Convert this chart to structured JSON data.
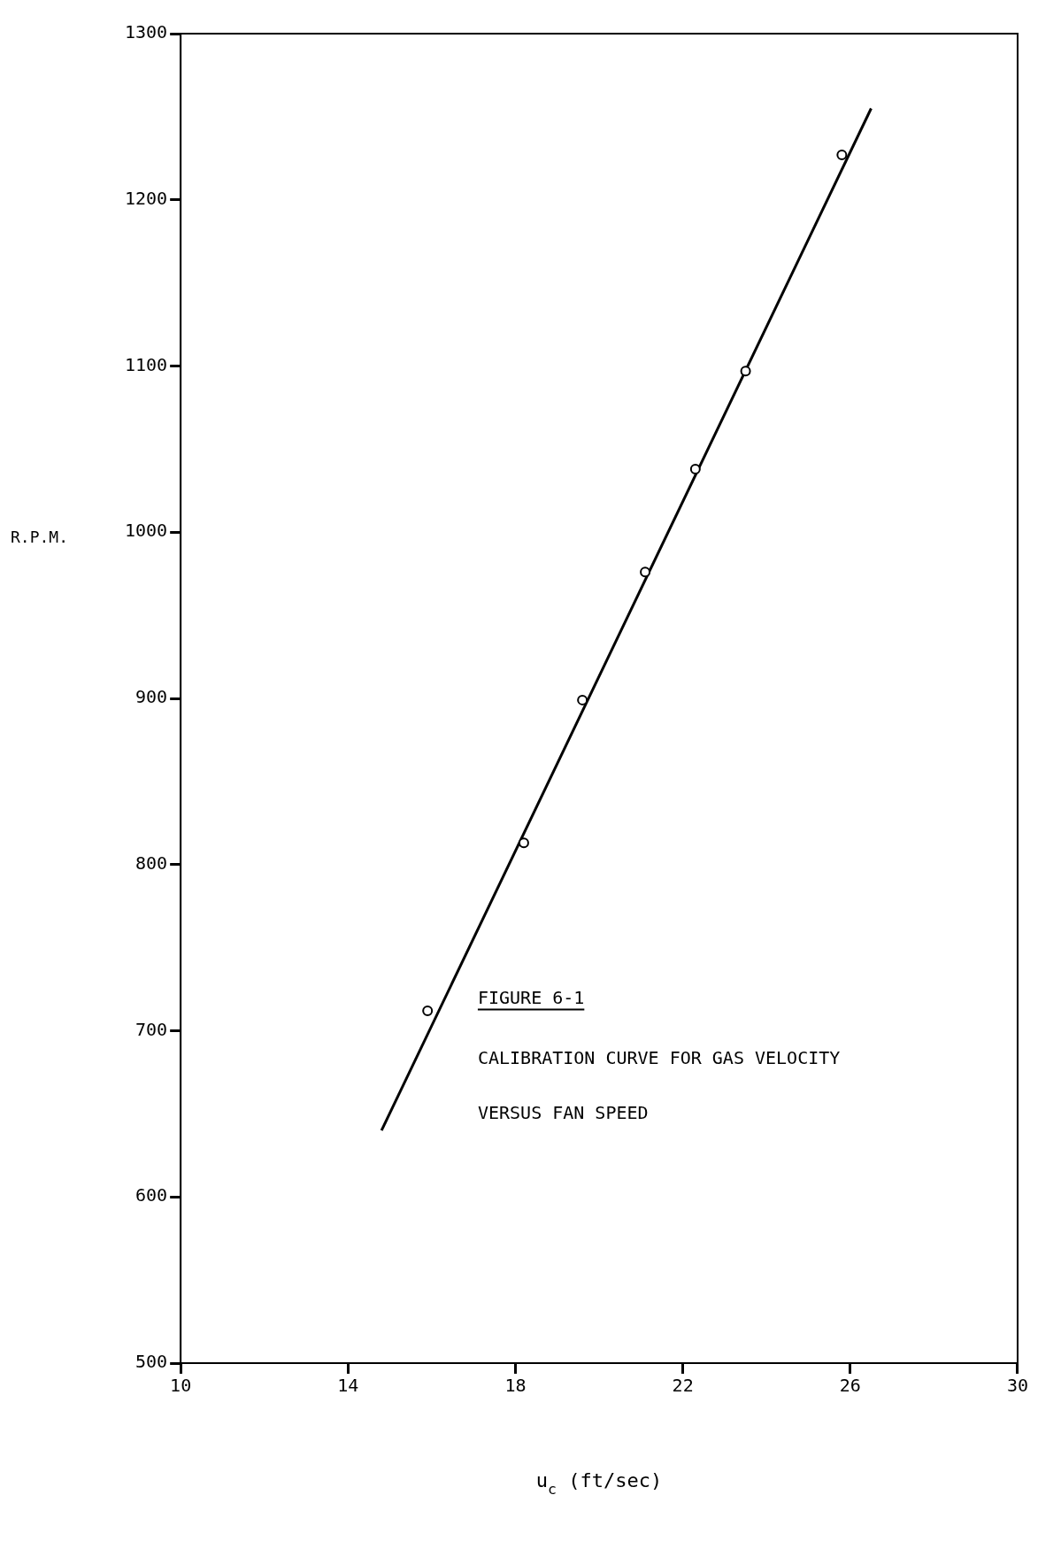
{
  "chart_data": {
    "type": "scatter",
    "xlabel": "u$_{c}$ (ft/sec)",
    "ylabel": "R.P.M.",
    "annotations": [
      "FIGURE 6-1",
      "CALIBRATION CURVE FOR GAS VELOCITY",
      "VERSUS FAN SPEED"
    ],
    "series": [
      {
        "color": "#000000",
        "marker": "circle",
        "x": [
          15.9,
          18.2,
          19.6,
          21.1,
          22.3,
          23.5,
          25.8
        ],
        "values": [
          712,
          813,
          899,
          976,
          1038,
          1097,
          1227
        ]
      },
      {
        "type": "line",
        "color": "#000000",
        "marker": "none",
        "line_style": "solid",
        "x": [
          14.8,
          26.5
        ],
        "values": [
          640,
          1255
        ]
      }
    ],
    "xlim": [
      10,
      30
    ],
    "xticks": [
      10,
      14,
      18,
      22,
      26,
      30
    ],
    "ylim": [
      500,
      1300
    ],
    "yticks": [
      500,
      600,
      700,
      800,
      900,
      1000,
      1100,
      1200,
      1300
    ],
    "legend": false,
    "grid": false
  }
}
